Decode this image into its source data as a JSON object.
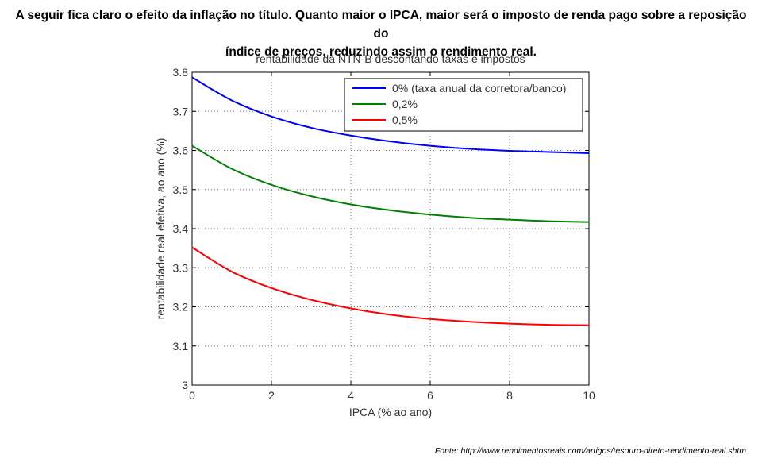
{
  "heading": {
    "line1": "A seguir fica claro o efeito da inflação no título. Quanto maior o IPCA, maior será o imposto de renda pago sobre a reposição do",
    "line2": "índice de preços, reduzindo assim o rendimento real."
  },
  "source": "Fonte: http://www.rendimentosreais.com/artigos/tesouro-direto-rendimento-real.shtm",
  "chart_data": {
    "type": "line",
    "title": "rentabilidade da NTN-B descontando taxas e impostos",
    "xlabel": "IPCA (% ao ano)",
    "ylabel": "rentabilidade real efetiva, ao ano (%)",
    "xlim": [
      0,
      10
    ],
    "ylim": [
      3.0,
      3.8
    ],
    "xticks": [
      0,
      2,
      4,
      6,
      8,
      10
    ],
    "yticks": [
      3,
      3.1,
      3.2,
      3.3,
      3.4,
      3.5,
      3.6,
      3.7,
      3.8
    ],
    "ytick_labels": [
      "3",
      "3.1",
      "3.2",
      "3.3",
      "3.4",
      "3.5",
      "3.6",
      "3.7",
      "3.8"
    ],
    "grid": true,
    "legend_position": "top-right",
    "x": [
      0,
      1,
      2,
      3,
      4,
      5,
      6,
      7,
      8,
      9,
      10
    ],
    "series": [
      {
        "name": "0% (taxa anual da corretora/banco)",
        "color": "#0000ff",
        "values": [
          3.787,
          3.728,
          3.687,
          3.658,
          3.638,
          3.623,
          3.612,
          3.604,
          3.599,
          3.596,
          3.593
        ]
      },
      {
        "name": "0,2%",
        "color": "#008000",
        "values": [
          3.612,
          3.553,
          3.512,
          3.483,
          3.462,
          3.447,
          3.436,
          3.428,
          3.423,
          3.419,
          3.417
        ]
      },
      {
        "name": "0,5%",
        "color": "#ff0000",
        "values": [
          3.352,
          3.29,
          3.248,
          3.218,
          3.196,
          3.18,
          3.169,
          3.162,
          3.157,
          3.154,
          3.153
        ]
      }
    ]
  }
}
